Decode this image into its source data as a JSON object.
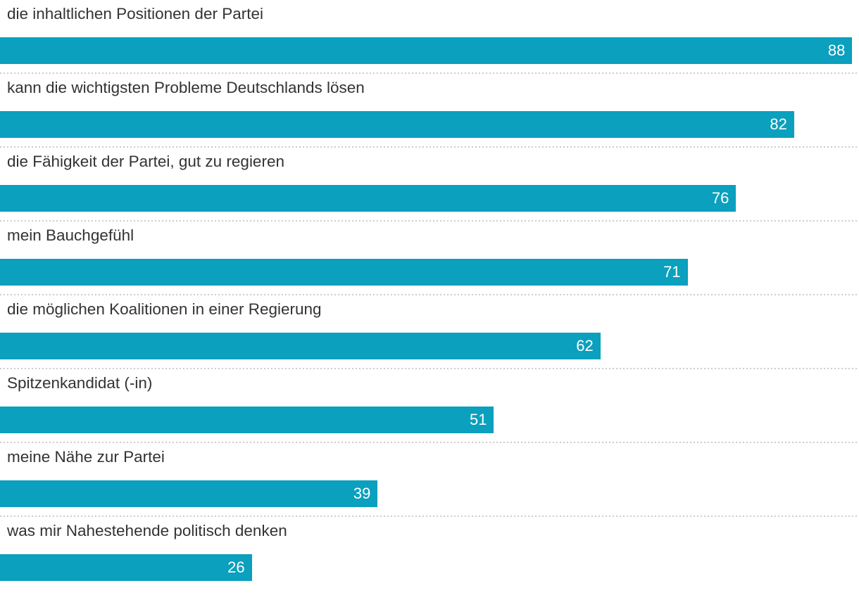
{
  "chart_data": {
    "type": "bar",
    "orientation": "horizontal",
    "title": "",
    "xlabel": "",
    "ylabel": "",
    "categories": [
      "die inhaltlichen Positionen der Partei",
      "kann die wichtigsten Probleme Deutschlands lösen",
      "die Fähigkeit der Partei, gut zu regieren",
      "mein Bauchgefühl",
      "die möglichen Koalitionen in einer Regierung",
      "Spitzenkandidat (-in)",
      "meine Nähe zur Partei",
      "was mir Nahestehende politisch denken"
    ],
    "values": [
      88,
      82,
      76,
      71,
      62,
      51,
      39,
      26
    ],
    "xlim": [
      0,
      88.7
    ],
    "grid": false,
    "legend": false,
    "value_labels_position": "inside-end",
    "bar_color": "#0aa0be",
    "value_label_color": "#ffffff",
    "category_label_color": "#333333",
    "separator_color": "#cccccc",
    "separator_style": "dotted"
  }
}
